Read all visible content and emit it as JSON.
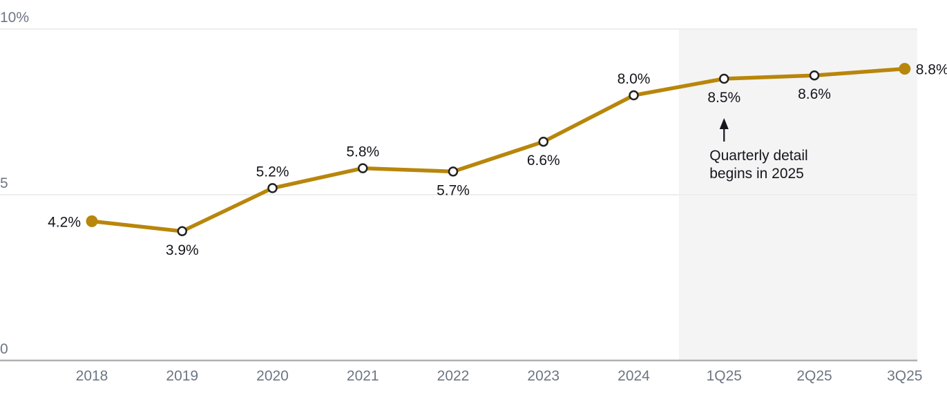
{
  "chart_data": {
    "type": "line",
    "categories": [
      "2018",
      "2019",
      "2020",
      "2021",
      "2022",
      "2023",
      "2024",
      "1Q25",
      "2Q25",
      "3Q25"
    ],
    "values": [
      4.2,
      3.9,
      5.2,
      5.8,
      5.7,
      6.6,
      8.0,
      8.5,
      8.6,
      8.8
    ],
    "point_labels": [
      "4.2%",
      "3.9%",
      "5.2%",
      "5.8%",
      "5.7%",
      "6.6%",
      "8.0%",
      "8.5%",
      "8.6%",
      "8.8%"
    ],
    "label_positions": [
      "left",
      "below",
      "above",
      "above",
      "below",
      "below",
      "above",
      "below",
      "below",
      "right"
    ],
    "markers": [
      "filled",
      "open",
      "open",
      "open",
      "open",
      "open",
      "open",
      "open",
      "open",
      "filled"
    ],
    "y_ticks": [
      {
        "value": 10,
        "label": "10%"
      },
      {
        "value": 5,
        "label": "5"
      },
      {
        "value": 0,
        "label": "0"
      }
    ],
    "ylim": [
      0,
      10
    ],
    "grid": "horizontal",
    "legend": "none",
    "xlabel": "",
    "ylabel": "",
    "colors": {
      "line": "#B8860B",
      "filled_marker": "#B8860B",
      "open_marker_fill": "#FFFFFF",
      "open_marker_stroke": "#222222",
      "data_label": "#15151D",
      "axis_label": "#6D7683",
      "gridline": "#EDEDED",
      "axis_line": "#B0B0B0",
      "shaded_region": "#F4F4F4",
      "annotation_text": "#15151D",
      "annotation_arrow": "#15151D"
    },
    "shaded_region": {
      "start_between": [
        "2024",
        "1Q25"
      ],
      "end": "right-edge",
      "top": "10%-gridline",
      "bottom": "x-axis"
    },
    "annotation": {
      "lines": [
        "Quarterly detail",
        "begins in 2025"
      ],
      "arrow_direction": "up",
      "target_category": "1Q25"
    }
  }
}
